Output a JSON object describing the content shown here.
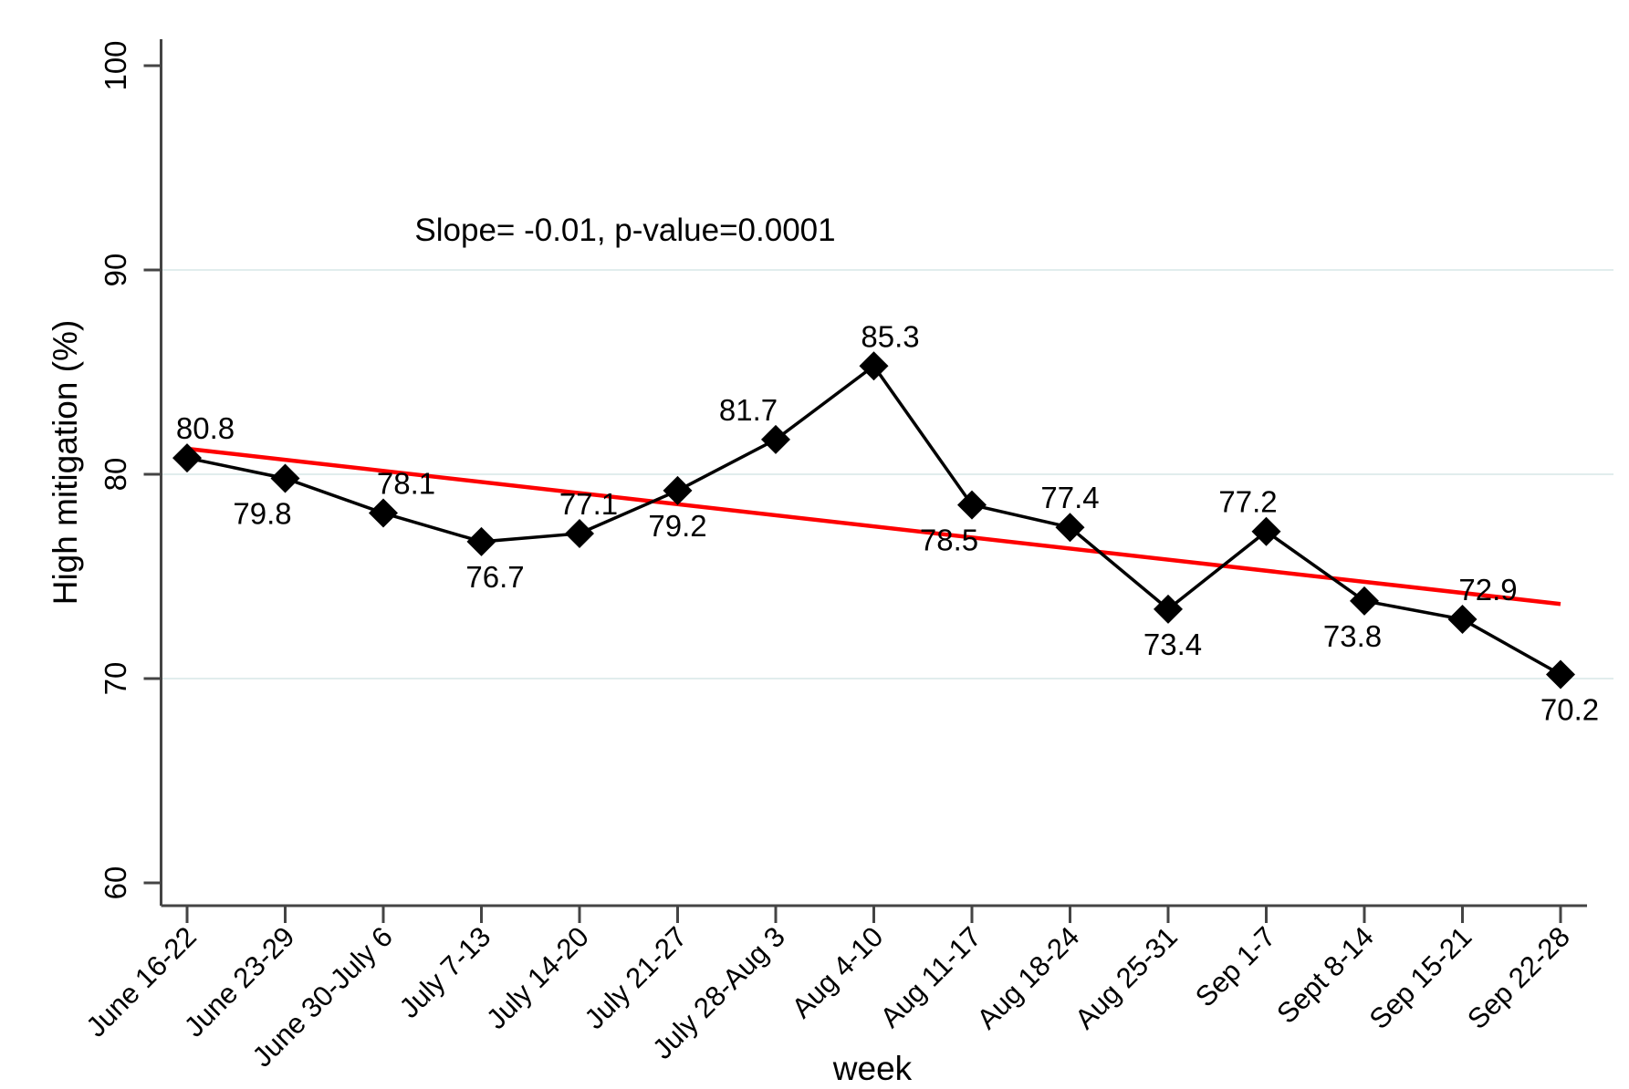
{
  "chart_data": {
    "type": "line",
    "title": "",
    "xlabel": "week",
    "ylabel": "High mitigation (%)",
    "annotation": "Slope= -0.01, p-value=0.0001",
    "categories": [
      "June 16-22",
      "June 23-29",
      "June 30-July 6",
      "July 7-13",
      "July 14-20",
      "July 21-27",
      "July 28-Aug 3",
      "Aug 4-10",
      "Aug 11-17",
      "Aug 18-24",
      "Aug 25-31",
      "Sep 1-7",
      "Sept 8-14",
      "Sep 15-21",
      "Sep 22-28"
    ],
    "series": [
      {
        "name": "High mitigation (%)",
        "marker": "diamond",
        "color": "#000000",
        "values": [
          80.8,
          79.8,
          78.1,
          76.7,
          77.1,
          79.2,
          81.7,
          85.3,
          78.5,
          77.4,
          73.4,
          77.2,
          73.8,
          72.9,
          70.2
        ]
      }
    ],
    "trend_line": {
      "color": "#fe0000",
      "start_value": 81.25,
      "end_value": 73.65
    },
    "ylim": [
      60,
      100
    ],
    "yticks": [
      60,
      70,
      80,
      90,
      100
    ],
    "gridlines_at": [
      70,
      80,
      90
    ],
    "grid_color": "#e1eded",
    "axis_color": "#444444",
    "legend": "none",
    "label_sides": [
      "above",
      "below",
      "above",
      "below",
      "above",
      "below",
      "above",
      "above",
      "below",
      "above",
      "below",
      "above",
      "below",
      "above",
      "below"
    ],
    "label_dx": [
      20,
      -25,
      25,
      15,
      10,
      0,
      -30,
      18,
      -25,
      0,
      5,
      -20,
      -13,
      28,
      10
    ]
  }
}
